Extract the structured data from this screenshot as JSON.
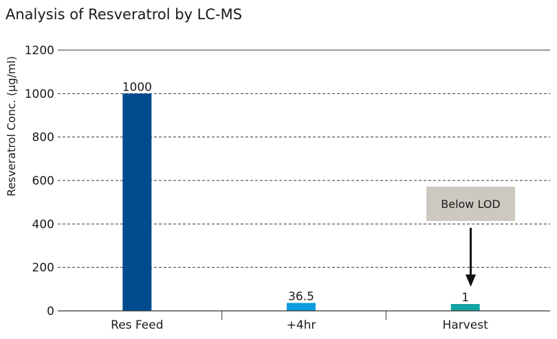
{
  "chart_data": {
    "type": "bar",
    "title": "Analysis of Resveratrol by LC-MS",
    "xlabel": "",
    "ylabel": "Resveratrol Conc. (µg/ml)",
    "ylim": [
      0,
      1200
    ],
    "yticks": [
      0,
      200,
      400,
      600,
      800,
      1000,
      1200
    ],
    "grid": true,
    "categories": [
      "Res Feed",
      "+4hr",
      "Harvest"
    ],
    "values": [
      1000,
      36.5,
      1
    ],
    "data_labels": [
      "1000",
      "36.5",
      "1"
    ],
    "colors": [
      "#004b8d",
      "#0a9be0",
      "#12a3a3"
    ],
    "annotation": {
      "text": "Below LOD",
      "target_category": "Harvest"
    }
  }
}
